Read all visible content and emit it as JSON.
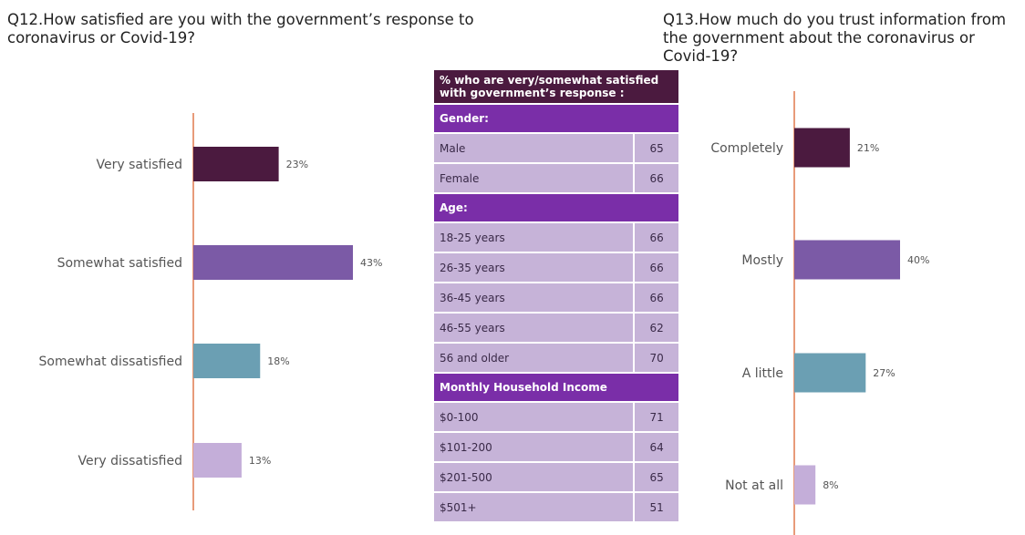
{
  "q12": {
    "title": "Q12.How satisfied are you with the government’s response to coronavirus or Covid-19?"
  },
  "q13": {
    "title": "Q13.How much do you trust information from the government about the coronavirus or Covid-19?"
  },
  "table": {
    "header": "% who are very/somewhat satisfied with government’s response :",
    "sections": [
      {
        "title": "Gender:",
        "rows": [
          {
            "label": "Male",
            "value": "65"
          },
          {
            "label": "Female",
            "value": "66"
          }
        ]
      },
      {
        "title": "Age:",
        "rows": [
          {
            "label": "18-25 years",
            "value": "66"
          },
          {
            "label": "26-35 years",
            "value": "66"
          },
          {
            "label": "36-45 years",
            "value": "66"
          },
          {
            "label": "46-55 years",
            "value": "62"
          },
          {
            "label": "56 and older",
            "value": "70"
          }
        ]
      },
      {
        "title": "Monthly Household Income",
        "rows": [
          {
            "label": "$0-100",
            "value": "71"
          },
          {
            "label": "$101-200",
            "value": "64"
          },
          {
            "label": "$201-500",
            "value": "65"
          },
          {
            "label": "$501+",
            "value": "51"
          }
        ]
      }
    ]
  },
  "chart_data": [
    {
      "type": "bar",
      "orientation": "horizontal",
      "categories": [
        "Very satisfied",
        "Somewhat satisfied",
        "Somewhat dissatisfied",
        "Very dissatisfied"
      ],
      "values": [
        23,
        43,
        18,
        13
      ],
      "value_labels": [
        "23%",
        "43%",
        "18%",
        "13%"
      ],
      "colors": [
        "#4b1a3f",
        "#7b5aa6",
        "#6b9fb3",
        "#c4aed9"
      ],
      "unit": "%"
    },
    {
      "type": "bar",
      "orientation": "horizontal",
      "categories": [
        "Completely",
        "Mostly",
        "A little",
        "Not at all"
      ],
      "values": [
        21,
        40,
        27,
        8
      ],
      "value_labels": [
        "21%",
        "40%",
        "27%",
        "8%"
      ],
      "colors": [
        "#4b1a3f",
        "#7b5aa6",
        "#6b9fb3",
        "#c4aed9"
      ],
      "unit": "%"
    }
  ]
}
